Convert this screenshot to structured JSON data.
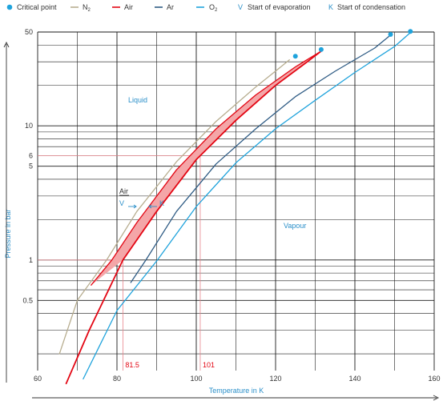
{
  "chart_data": {
    "type": "line",
    "xlabel": "Temperature in K",
    "ylabel": "Pressure in bar",
    "x_scale": "linear",
    "y_scale": "log",
    "xlim": [
      60,
      160
    ],
    "ylim": [
      0.15,
      50
    ],
    "x_ticks": [
      60,
      80,
      100,
      120,
      140,
      160
    ],
    "y_ticks": [
      {
        "value": 0.5,
        "label": "0.5"
      },
      {
        "value": 1,
        "label": "1"
      },
      {
        "value": 5,
        "label": "5"
      },
      {
        "value": 6,
        "label": "6"
      },
      {
        "value": 10,
        "label": "10"
      },
      {
        "value": 50,
        "label": "50"
      }
    ],
    "grid": true,
    "legend_position": "top",
    "legend": [
      {
        "id": "critical",
        "label": "Critical point",
        "symbol": "dot"
      },
      {
        "id": "n2",
        "label": "N",
        "subscript": "2"
      },
      {
        "id": "air",
        "label": "Air"
      },
      {
        "id": "ar",
        "label": "Ar"
      },
      {
        "id": "o2",
        "label": "O",
        "subscript": "2"
      },
      {
        "id": "v",
        "label": "Start of evaporation",
        "letter": "V"
      },
      {
        "id": "k",
        "label": "Start of condensation",
        "letter": "K"
      }
    ],
    "colors": {
      "n2": "#b7ad8f",
      "air": "#e30613",
      "air_fill": "#f4a6a8",
      "ar": "#2e5b84",
      "o2": "#1fa3dc",
      "critical": "#1fa3dc",
      "reference": "#e8858c",
      "grid": "#1a1a1a"
    },
    "series": [
      {
        "name": "N2",
        "key": "n2",
        "points": [
          [
            65.5,
            0.2
          ],
          [
            70,
            0.5
          ],
          [
            77.4,
            1.0
          ],
          [
            85,
            2.3
          ],
          [
            95,
            5.4
          ],
          [
            105,
            10.8
          ],
          [
            115,
            19.5
          ],
          [
            121,
            27.0
          ],
          [
            123.5,
            31.0
          ]
        ]
      },
      {
        "name": "Air, Start of evaporation",
        "key": "air_v",
        "points": [
          [
            73.5,
            0.65
          ],
          [
            78.7,
            1.0
          ],
          [
            85,
            1.9
          ],
          [
            95,
            4.7
          ],
          [
            105,
            9.5
          ],
          [
            115,
            17.0
          ],
          [
            125,
            27.5
          ],
          [
            131.5,
            36.0
          ]
        ]
      },
      {
        "name": "Air, Start of condensation",
        "key": "air_k",
        "points": [
          [
            67.2,
            0.12
          ],
          [
            73,
            0.3
          ],
          [
            81.5,
            1.0
          ],
          [
            90,
            2.3
          ],
          [
            100,
            5.6
          ],
          [
            110,
            11.0
          ],
          [
            120,
            20.0
          ],
          [
            128,
            30.0
          ],
          [
            131.5,
            36.0
          ]
        ]
      },
      {
        "name": "Ar",
        "key": "ar",
        "points": [
          [
            83.5,
            0.68
          ],
          [
            87.3,
            1.0
          ],
          [
            95,
            2.3
          ],
          [
            105,
            5.2
          ],
          [
            115,
            9.5
          ],
          [
            125,
            16.5
          ],
          [
            135,
            25.5
          ],
          [
            145,
            38.0
          ],
          [
            149,
            47.5
          ]
        ]
      },
      {
        "name": "O2",
        "key": "o2",
        "points": [
          [
            71.5,
            0.13
          ],
          [
            80,
            0.42
          ],
          [
            90.2,
            1.0
          ],
          [
            100,
            2.5
          ],
          [
            110,
            5.3
          ],
          [
            120,
            9.5
          ],
          [
            130,
            15.5
          ],
          [
            140,
            25.0
          ],
          [
            150,
            39.0
          ],
          [
            154,
            49.5
          ]
        ]
      }
    ],
    "critical_points": [
      {
        "name": "N2",
        "x": 125,
        "y": 33
      },
      {
        "name": "Air",
        "x": 131.5,
        "y": 37
      },
      {
        "name": "Ar",
        "x": 149,
        "y": 48
      },
      {
        "name": "O2",
        "x": 154,
        "y": 50.5
      }
    ],
    "reference_lines": [
      {
        "type": "horizontal",
        "y": 6,
        "to_x": 101
      },
      {
        "type": "horizontal",
        "y": 1,
        "to_x": 81.5
      },
      {
        "type": "vertical",
        "x": 81.5,
        "from_y": 1
      },
      {
        "type": "vertical",
        "x": 101,
        "from_y": 6
      }
    ],
    "reference_labels": [
      {
        "text": "81.5",
        "x": 81.5
      },
      {
        "text": "101",
        "x": 101
      }
    ],
    "annotations": {
      "liquid": "Liquid",
      "vapour": "Vapour",
      "air": "Air",
      "v": "V",
      "k": "K"
    }
  }
}
